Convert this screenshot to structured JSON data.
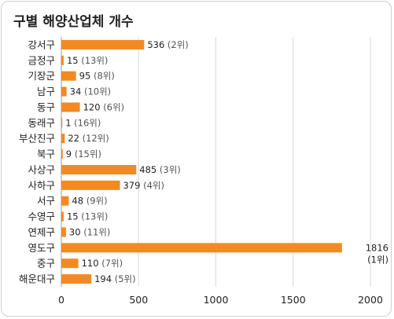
{
  "chart_data": {
    "type": "bar",
    "orientation": "horizontal",
    "title": "구별 해양산업체 개수",
    "xlabel": "",
    "ylabel": "",
    "xlim": [
      0,
      2000
    ],
    "xticks": [
      "0",
      "500",
      "1000",
      "1500",
      "2000"
    ],
    "grid": true,
    "color": "#F28A24",
    "categories": [
      "강서구",
      "금정구",
      "기장군",
      "남구",
      "동구",
      "동래구",
      "부산진구",
      "북구",
      "사상구",
      "사하구",
      "서구",
      "수영구",
      "연제구",
      "영도구",
      "중구",
      "해운대구"
    ],
    "values": [
      536,
      15,
      95,
      34,
      120,
      1,
      22,
      9,
      485,
      379,
      48,
      15,
      30,
      1816,
      110,
      194
    ],
    "value_labels": [
      "536",
      "15",
      "95",
      "34",
      "120",
      "1",
      "22",
      "9",
      "485",
      "379",
      "48",
      "15",
      "30",
      "1816",
      "110",
      "194"
    ],
    "rank_labels": [
      "(2위)",
      "(13위)",
      "(8위)",
      "(10위)",
      "(6위)",
      "(16위)",
      "(12위)",
      "(15위)",
      "(3위)",
      "(4위)",
      "(9위)",
      "(13위)",
      "(11위)",
      "(1위)",
      "(7위)",
      "(5위)"
    ]
  }
}
